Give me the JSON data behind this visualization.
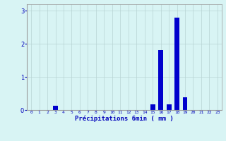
{
  "categories": [
    0,
    1,
    2,
    3,
    4,
    5,
    6,
    7,
    8,
    9,
    10,
    11,
    12,
    13,
    14,
    15,
    16,
    17,
    18,
    19,
    20,
    21,
    22,
    23
  ],
  "values": [
    0,
    0,
    0,
    0.12,
    0,
    0,
    0,
    0,
    0,
    0,
    0,
    0,
    0,
    0,
    0,
    0.18,
    1.82,
    0.18,
    2.8,
    0.38,
    0,
    0,
    0,
    0
  ],
  "bar_color": "#0000cc",
  "bg_color": "#d8f4f4",
  "grid_color": "#b8d4d4",
  "xlabel": "Précipitations 6min ( mm )",
  "ylim": [
    0,
    3.2
  ],
  "yticks": [
    0,
    1,
    2,
    3
  ],
  "xlim": [
    -0.5,
    23.5
  ],
  "figsize": [
    3.2,
    2.0
  ],
  "dpi": 100
}
